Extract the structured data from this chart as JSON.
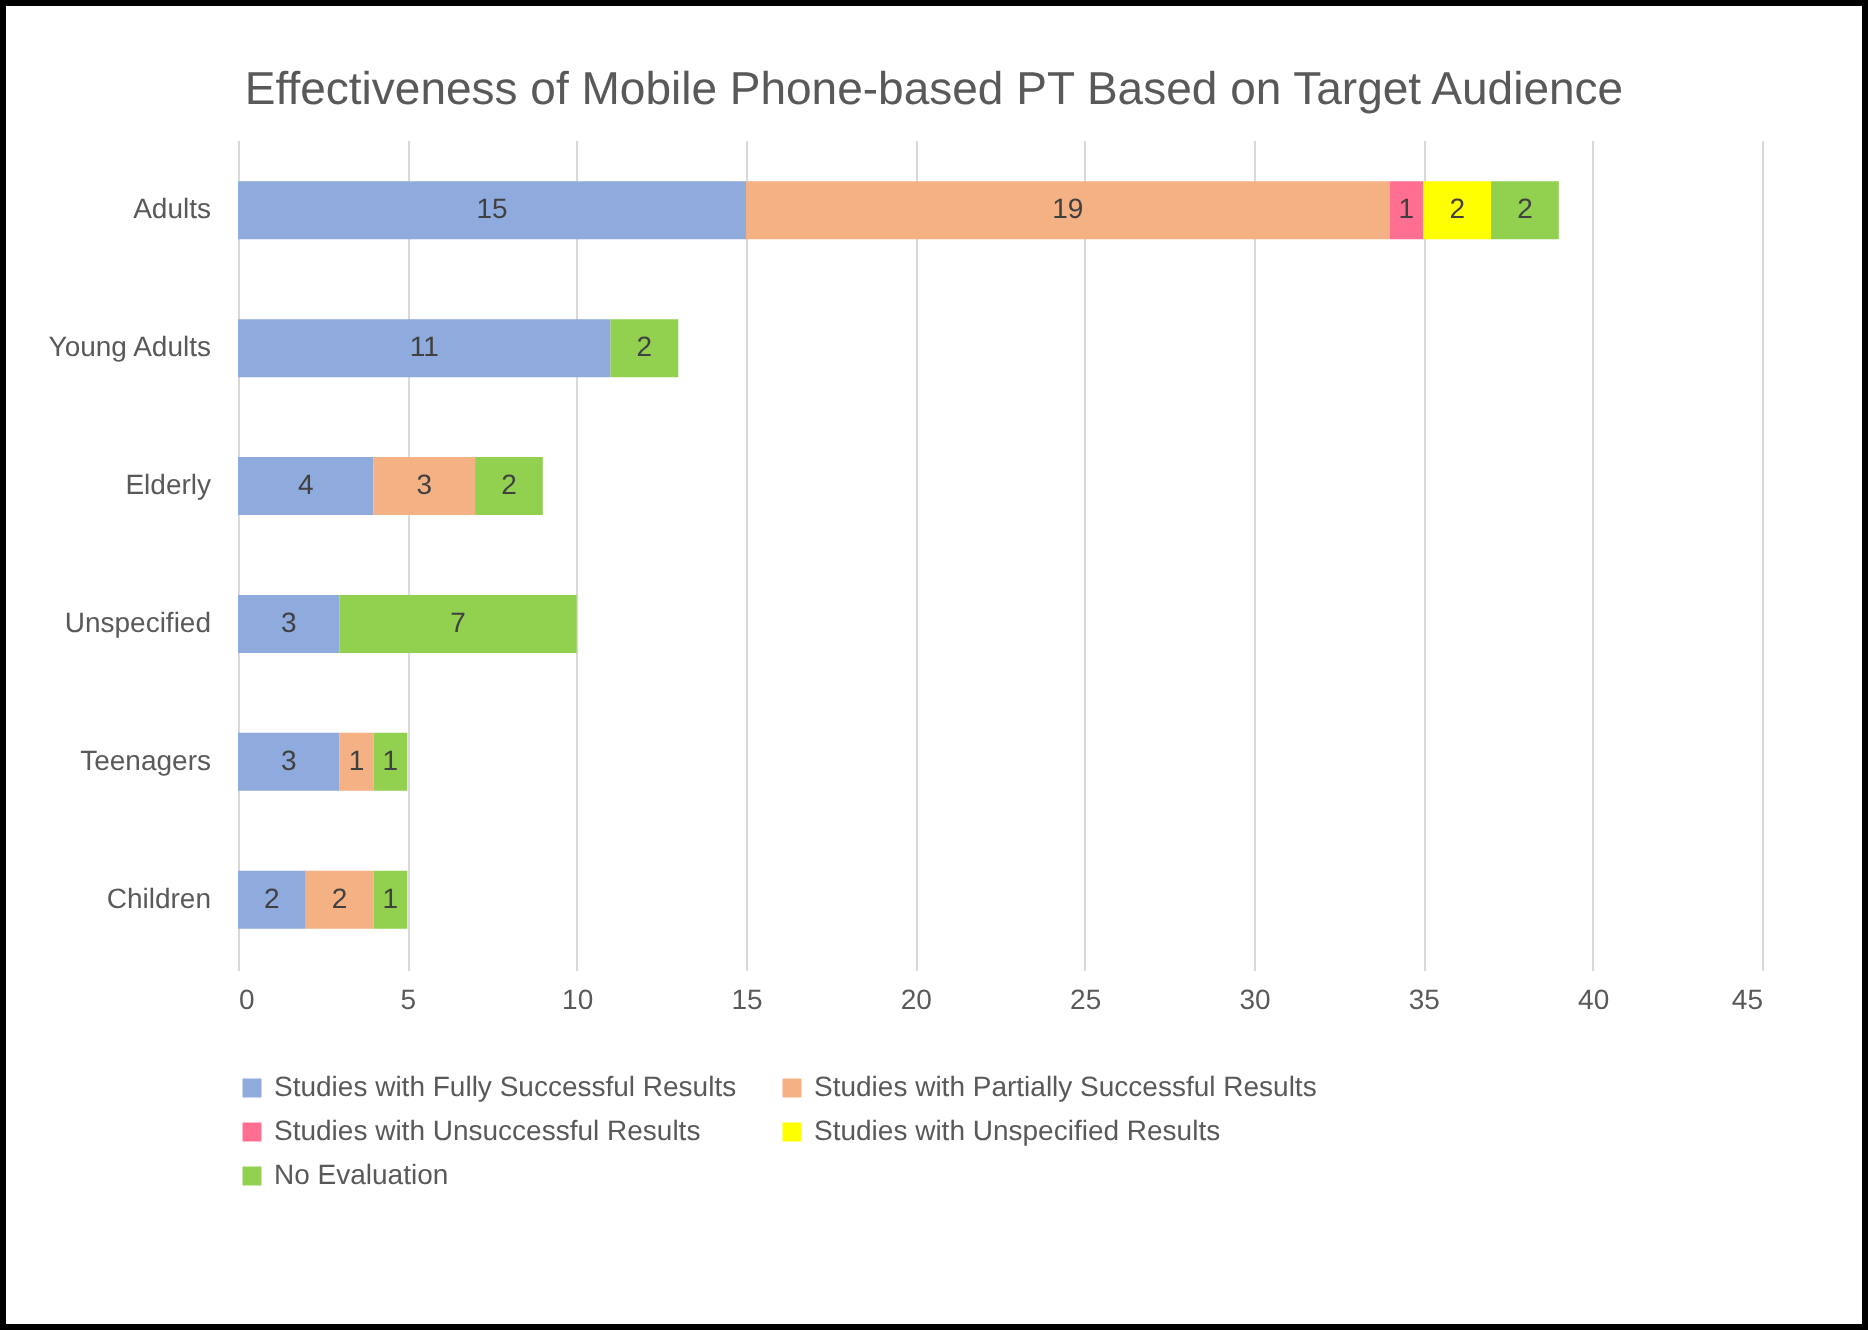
{
  "chart_data": {
    "type": "bar",
    "orientation": "horizontal",
    "stacked": true,
    "title": "Effectiveness of Mobile Phone-based PT Based on Target Audience",
    "categories": [
      "Adults",
      "Young Adults",
      "Elderly",
      "Unspecified",
      "Teenagers",
      "Children"
    ],
    "series": [
      {
        "name": "Studies with Fully Successful Results",
        "color": "#8faadc",
        "values": [
          15,
          11,
          4,
          3,
          3,
          2
        ]
      },
      {
        "name": "Studies with Partially Successful Results",
        "color": "#f4b183",
        "values": [
          19,
          null,
          3,
          null,
          1,
          2
        ]
      },
      {
        "name": "Studies with Unsuccessful Results",
        "color": "#ff6f91",
        "values": [
          1,
          null,
          null,
          null,
          null,
          null
        ]
      },
      {
        "name": "Studies with Unspecified Results",
        "color": "#ffff00",
        "values": [
          2,
          null,
          null,
          null,
          null,
          null
        ]
      },
      {
        "name": "No Evaluation",
        "color": "#92d050",
        "values": [
          2,
          2,
          2,
          7,
          1,
          1
        ]
      }
    ],
    "xlim": [
      0,
      45
    ],
    "xticks": [
      0,
      5,
      10,
      15,
      20,
      25,
      30,
      35,
      40,
      45
    ],
    "grid": "x",
    "legend": "bottom",
    "data_labels": true
  }
}
